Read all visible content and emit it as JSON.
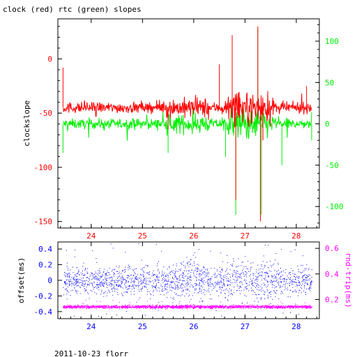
{
  "title": "clock (red) rtc (green) slopes",
  "footer": "2011-10-23 florr",
  "colors": {
    "red": "#ff0000",
    "green": "#00ee00",
    "blue": "#0000ff",
    "magenta": "#ff00ff",
    "axis": "#000000"
  },
  "chart_data": [
    {
      "type": "line",
      "panel": "top",
      "xlabel": "",
      "ylabel": "clockslope",
      "xlim": [
        23.35,
        28.45
      ],
      "ylim": [
        -156,
        37
      ],
      "y2lim": [
        -126,
        127
      ],
      "x_ticks": [
        "24",
        "25",
        "26",
        "27",
        "28"
      ],
      "y_ticks": [
        "0",
        "-50",
        "-100",
        "-150"
      ],
      "y2_ticks": [
        "100",
        "50",
        "0",
        "-50",
        "-100"
      ],
      "grid": false,
      "series": [
        {
          "name": "clock (red)",
          "axis": "left",
          "x_range": [
            23.45,
            28.3
          ],
          "baseline": -45,
          "noise": 2.5,
          "spikes": [
            {
              "x": 23.45,
              "y": -8
            },
            {
              "x": 25.5,
              "y": -65
            },
            {
              "x": 26.5,
              "y": -5
            },
            {
              "x": 26.75,
              "y": 22
            },
            {
              "x": 26.82,
              "y": -130
            },
            {
              "x": 27.25,
              "y": 30
            },
            {
              "x": 27.3,
              "y": -150
            },
            {
              "x": 27.35,
              "y": -75
            },
            {
              "x": 28.2,
              "y": -25
            }
          ]
        },
        {
          "name": "rtc (green)",
          "axis": "right",
          "x_range": [
            23.45,
            28.3
          ],
          "baseline": 0,
          "noise": 3,
          "spikes": [
            {
              "x": 23.45,
              "y": -35
            },
            {
              "x": 25.5,
              "y": -35
            },
            {
              "x": 26.62,
              "y": -40
            },
            {
              "x": 26.75,
              "y": 95
            },
            {
              "x": 26.82,
              "y": -110
            },
            {
              "x": 27.25,
              "y": 115
            },
            {
              "x": 27.32,
              "y": -110
            },
            {
              "x": 27.72,
              "y": -50
            },
            {
              "x": 28.3,
              "y": -20
            }
          ]
        }
      ]
    },
    {
      "type": "scatter",
      "panel": "bottom",
      "xlabel": "",
      "ylabel": "offset(ms)",
      "y2label": "rnd-trip(ms)",
      "xlim": [
        23.35,
        28.45
      ],
      "ylim": [
        -0.49,
        0.49
      ],
      "y2lim": [
        0.05,
        0.65
      ],
      "x_ticks": [
        "24",
        "25",
        "26",
        "27",
        "28"
      ],
      "y_ticks": [
        "0.4",
        "0.2",
        "0",
        "-0.2",
        "-0.4"
      ],
      "y2_ticks": [
        "0.6",
        "0.4",
        "0.2"
      ],
      "grid": false,
      "series": [
        {
          "name": "offset",
          "axis": "left",
          "x_range": [
            23.45,
            28.3
          ],
          "center": 0.0,
          "spread": 0.1,
          "outlier_max": 0.48
        },
        {
          "name": "rnd-trip",
          "axis": "right",
          "x_range": [
            23.45,
            28.3
          ],
          "center": 0.145,
          "spread": 0.01
        }
      ]
    }
  ]
}
